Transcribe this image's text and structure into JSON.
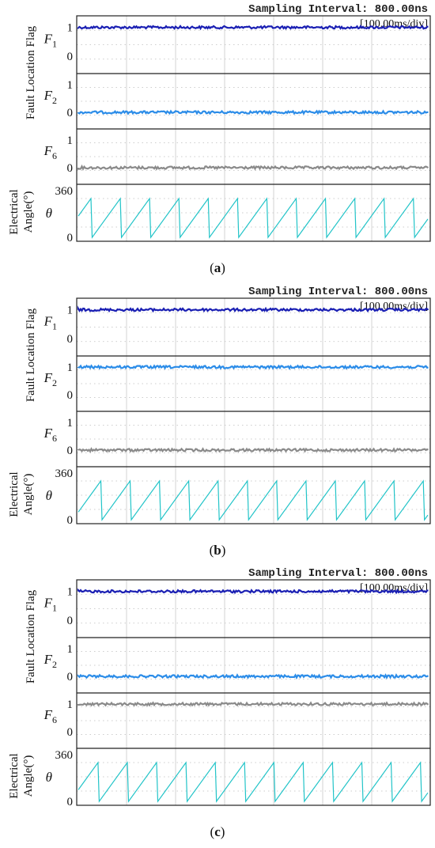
{
  "chart_data": [
    {
      "type": "line",
      "panel_label": "a",
      "header": "Sampling Interval:  800.00ns",
      "time_scale": "[100.00ms/div]",
      "group_ylabel": "Fault Location Flag",
      "angle_ylabel": [
        "Electrical",
        "Angle(°)"
      ],
      "grid": true,
      "x_divisions": 9,
      "subplots": [
        {
          "name_main": "F",
          "name_sub": "1",
          "yticks": [
            "1",
            "0"
          ],
          "ylim": [
            -0.6,
            1.4
          ],
          "level": 1,
          "color": "#1a1fb3"
        },
        {
          "name_main": "F",
          "name_sub": "2",
          "yticks": [
            "1",
            "0"
          ],
          "ylim": [
            -0.6,
            1.4
          ],
          "level": 0,
          "color": "#2b8ce8"
        },
        {
          "name_main": "F",
          "name_sub": "6",
          "yticks": [
            "1",
            "0"
          ],
          "ylim": [
            -0.6,
            1.4
          ],
          "level": 0,
          "color": "#8a8a8a"
        },
        {
          "name_main": "θ",
          "yticks": [
            "360",
            "0"
          ],
          "ylim": [
            -30,
            410
          ],
          "sawtooth": {
            "min": 0,
            "max": 300,
            "start_phase": 0.55,
            "periods": 12.4
          },
          "color": "#22c4c8"
        }
      ]
    },
    {
      "type": "line",
      "panel_label": "b",
      "header": "Sampling Interval:  800.00ns",
      "time_scale": "[100.00ms/div]",
      "group_ylabel": "Fault Location Flag",
      "angle_ylabel": [
        "Electrical",
        "Angle(°)"
      ],
      "grid": true,
      "x_divisions": 9,
      "subplots": [
        {
          "name_main": "F",
          "name_sub": "1",
          "yticks": [
            "1",
            "0"
          ],
          "ylim": [
            -0.6,
            1.4
          ],
          "level": 1,
          "color": "#1a1fb3"
        },
        {
          "name_main": "F",
          "name_sub": "2",
          "yticks": [
            "1",
            "0"
          ],
          "ylim": [
            -0.6,
            1.4
          ],
          "level": 1,
          "color": "#2b8ce8"
        },
        {
          "name_main": "F",
          "name_sub": "6",
          "yticks": [
            "1",
            "0"
          ],
          "ylim": [
            -0.6,
            1.4
          ],
          "level": 0,
          "color": "#8a8a8a"
        },
        {
          "name_main": "θ",
          "yticks": [
            "360",
            "0"
          ],
          "ylim": [
            -30,
            410
          ],
          "sawtooth": {
            "min": 0,
            "max": 300,
            "start_phase": 0.2,
            "periods": 12.4
          },
          "color": "#22c4c8"
        }
      ]
    },
    {
      "type": "line",
      "panel_label": "c",
      "header": "Sampling Interval:  800.00ns",
      "time_scale": "[100.00ms/div]",
      "group_ylabel": "Fault Location Flag",
      "angle_ylabel": [
        "Electrical",
        "Angle(°)"
      ],
      "grid": true,
      "x_divisions": 9,
      "subplots": [
        {
          "name_main": "F",
          "name_sub": "1",
          "yticks": [
            "1",
            "0"
          ],
          "ylim": [
            -0.6,
            1.4
          ],
          "level": 1,
          "color": "#1a1fb3"
        },
        {
          "name_main": "F",
          "name_sub": "2",
          "yticks": [
            "1",
            "0"
          ],
          "ylim": [
            -0.6,
            1.4
          ],
          "level": 0,
          "color": "#2b8ce8"
        },
        {
          "name_main": "F",
          "name_sub": "6",
          "yticks": [
            "1",
            "0"
          ],
          "ylim": [
            -0.6,
            1.4
          ],
          "level": 1,
          "color": "#8a8a8a"
        },
        {
          "name_main": "θ",
          "yticks": [
            "360",
            "0"
          ],
          "ylim": [
            -30,
            410
          ],
          "sawtooth": {
            "min": 0,
            "max": 300,
            "start_phase": 0.3,
            "periods": 12.4
          },
          "color": "#22c4c8"
        }
      ]
    }
  ]
}
